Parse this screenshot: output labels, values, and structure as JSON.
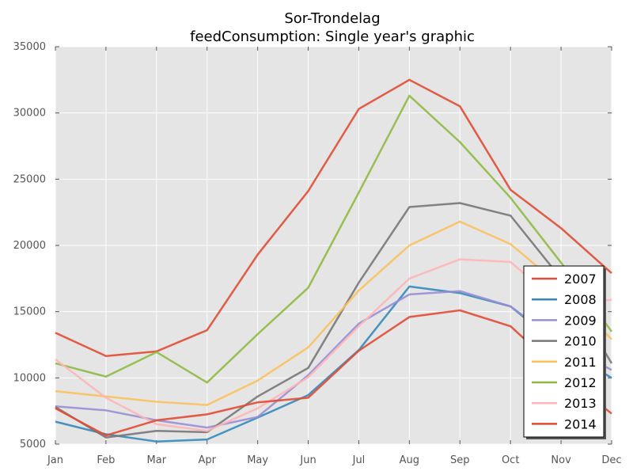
{
  "chart_data": {
    "type": "line",
    "title": "Sor-Trondelag",
    "subtitle": "feedConsumption: Single year's graphic",
    "xlabel": "",
    "ylabel": "",
    "categories": [
      "Jan",
      "Feb",
      "Mar",
      "Apr",
      "May",
      "Jun",
      "Jul",
      "Aug",
      "Sep",
      "Oct",
      "Nov",
      "Dec"
    ],
    "ylim": [
      5000,
      35000
    ],
    "yticks": [
      5000,
      10000,
      15000,
      20000,
      25000,
      30000,
      35000
    ],
    "grid": true,
    "legend_position": "lower-right",
    "series": [
      {
        "name": "2007",
        "color": "#E24A33",
        "values": [
          13400,
          11650,
          12000,
          13600,
          19300,
          24100,
          30300,
          32500,
          30500,
          24200,
          21300,
          17900
        ]
      },
      {
        "name": "2008",
        "color": "#348ABD",
        "values": [
          6700,
          5750,
          5200,
          5350,
          7000,
          8700,
          12100,
          16900,
          16400,
          15400,
          12300,
          10000
        ]
      },
      {
        "name": "2009",
        "color": "#988ED5",
        "values": [
          7850,
          7550,
          6800,
          6250,
          7050,
          10200,
          14100,
          16300,
          16550,
          15400,
          12600,
          10600
        ]
      },
      {
        "name": "2010",
        "color": "#777777",
        "values": [
          7800,
          5500,
          6000,
          5900,
          8600,
          10750,
          17200,
          22900,
          23200,
          22250,
          17500,
          11100
        ]
      },
      {
        "name": "2011",
        "color": "#FBC15E",
        "values": [
          9000,
          8600,
          8200,
          7950,
          9800,
          12300,
          16600,
          20000,
          21800,
          20100,
          16900,
          12900
        ]
      },
      {
        "name": "2012",
        "color": "#8EBA42",
        "values": [
          11100,
          10100,
          11950,
          9650,
          13300,
          16800,
          24000,
          31300,
          27800,
          23600,
          18700,
          13500
        ]
      },
      {
        "name": "2013",
        "color": "#FFB5B8",
        "values": [
          11400,
          8500,
          6500,
          6000,
          7700,
          10050,
          13900,
          17500,
          18950,
          18750,
          15500,
          15900
        ]
      },
      {
        "name": "2014",
        "color": "#E24A33",
        "values": [
          7700,
          5650,
          6800,
          7250,
          8150,
          8500,
          12050,
          14600,
          15100,
          13900,
          10400,
          7300
        ]
      }
    ]
  }
}
